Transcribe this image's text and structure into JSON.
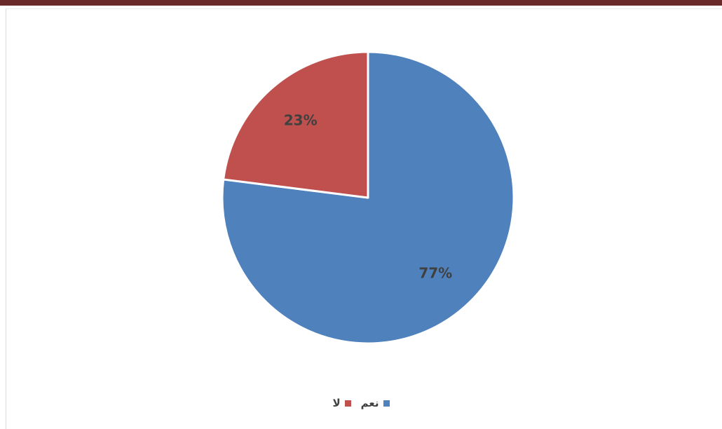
{
  "chart_data": {
    "type": "pie",
    "categories": [
      "نعم",
      "لا"
    ],
    "values": [
      77,
      23
    ],
    "labels": [
      "77%",
      "23%"
    ],
    "colors": [
      "#4f81bd",
      "#c0504d"
    ],
    "legend_position": "bottom",
    "title": ""
  }
}
